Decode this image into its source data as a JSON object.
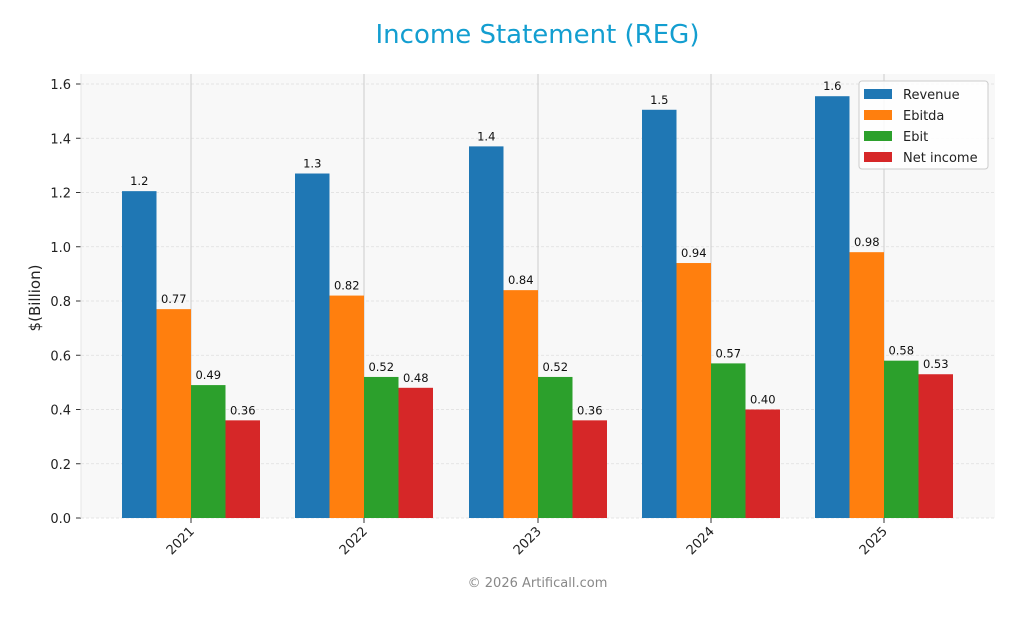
{
  "header": {
    "title": "Income Statement (REG)"
  },
  "footer": {
    "copyright": "© 2026 Artificall.com"
  },
  "colors": {
    "title": "#139ed0",
    "revenue": "#1f77b4",
    "ebitda": "#ff7f0e",
    "ebit": "#2ca02c",
    "net_income": "#d62728",
    "plot_bg": "#f8f8f8"
  },
  "chart_data": {
    "type": "bar",
    "title": "Income Statement (REG)",
    "xlabel": "",
    "ylabel": "$(Billion)",
    "ylim": [
      0,
      1.64
    ],
    "yticks": [
      0.0,
      0.2,
      0.4,
      0.6,
      0.8,
      1.0,
      1.2,
      1.4,
      1.6
    ],
    "ytick_labels": [
      "0.0",
      "0.2",
      "0.4",
      "0.6",
      "0.8",
      "1.0",
      "1.2",
      "1.4",
      "1.6"
    ],
    "categories": [
      "2021",
      "2022",
      "2023",
      "2024",
      "2025"
    ],
    "grid": true,
    "legend_position": "upper right",
    "series": [
      {
        "name": "Revenue",
        "color": "#1f77b4",
        "values": [
          1.205,
          1.27,
          1.37,
          1.505,
          1.555
        ],
        "labels": [
          "1.2",
          "1.3",
          "1.4",
          "1.5",
          "1.6"
        ]
      },
      {
        "name": "Ebitda",
        "color": "#ff7f0e",
        "values": [
          0.77,
          0.82,
          0.84,
          0.94,
          0.98
        ],
        "labels": [
          "0.77",
          "0.82",
          "0.84",
          "0.94",
          "0.98"
        ]
      },
      {
        "name": "Ebit",
        "color": "#2ca02c",
        "values": [
          0.49,
          0.52,
          0.52,
          0.57,
          0.58
        ],
        "labels": [
          "0.49",
          "0.52",
          "0.52",
          "0.57",
          "0.58"
        ]
      },
      {
        "name": "Net income",
        "color": "#d62728",
        "values": [
          0.36,
          0.48,
          0.36,
          0.4,
          0.53
        ],
        "labels": [
          "0.36",
          "0.48",
          "0.36",
          "0.40",
          "0.53"
        ]
      }
    ]
  }
}
